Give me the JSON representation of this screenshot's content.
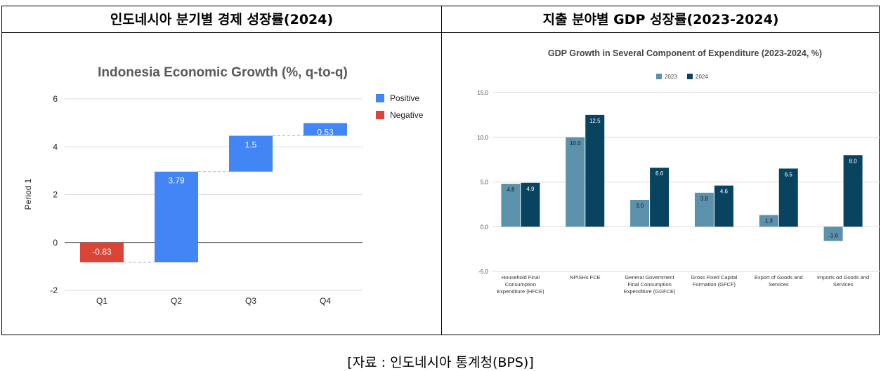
{
  "panels": [
    {
      "title": "인도네시아 분기별 경제 성장률(2024)"
    },
    {
      "title": "지출 분야별 GDP 성장률(2023-2024)"
    }
  ],
  "caption": "[자료 : 인도네시아 통계청(BPS)]",
  "chart_data": [
    {
      "type": "bar",
      "subtype": "waterfall",
      "title": "Indonesia Economic Growth (%, q-to-q)",
      "ylabel": "Period 1",
      "xlabel": "",
      "categories": [
        "Q1",
        "Q2",
        "Q3",
        "Q4"
      ],
      "values": [
        -0.83,
        3.79,
        1.5,
        0.53
      ],
      "value_labels": [
        "-0.83",
        "3.79",
        "1.5",
        "0.53"
      ],
      "ylim": [
        -2,
        6
      ],
      "yticks": [
        -2,
        0,
        2,
        4,
        6
      ],
      "grid": true,
      "legend": [
        {
          "name": "Positive",
          "color": "#4285f4"
        },
        {
          "name": "Negative",
          "color": "#db4437"
        }
      ],
      "legend_position": "right"
    },
    {
      "type": "bar",
      "title": "GDP Growth in Several Component of Expenditure (2023-2024, %)",
      "categories": [
        [
          "Household Final",
          "Consumption",
          "Expenditure (HFCE)"
        ],
        [
          "NPISHs FCE"
        ],
        [
          "General Government",
          "Final Consumption",
          "Expenditure (GGFCE)"
        ],
        [
          "Gross Fixed Capital",
          "Formation (GFCF)"
        ],
        [
          "Export of Goods and",
          "Services"
        ],
        [
          "Imports od Goods and",
          "Services"
        ]
      ],
      "series": [
        {
          "name": "2023",
          "color": "#5b91aa",
          "values": [
            4.8,
            10.0,
            3.0,
            3.8,
            1.3,
            -1.6
          ],
          "labels": [
            "4.8",
            "10.0",
            "3.0",
            "3.8",
            "1.3",
            "-1.6"
          ]
        },
        {
          "name": "2024",
          "color": "#08445f",
          "values": [
            4.9,
            12.5,
            6.6,
            4.6,
            6.5,
            8.0
          ],
          "labels": [
            "4.9",
            "12.5",
            "6.6",
            "4.6",
            "6.5",
            "8.0"
          ]
        }
      ],
      "ylim": [
        -5,
        15
      ],
      "yticks": [
        "-5.0",
        "0.0",
        "5.0",
        "10.0",
        "15.0"
      ],
      "grid": true,
      "legend_position": "top"
    }
  ]
}
